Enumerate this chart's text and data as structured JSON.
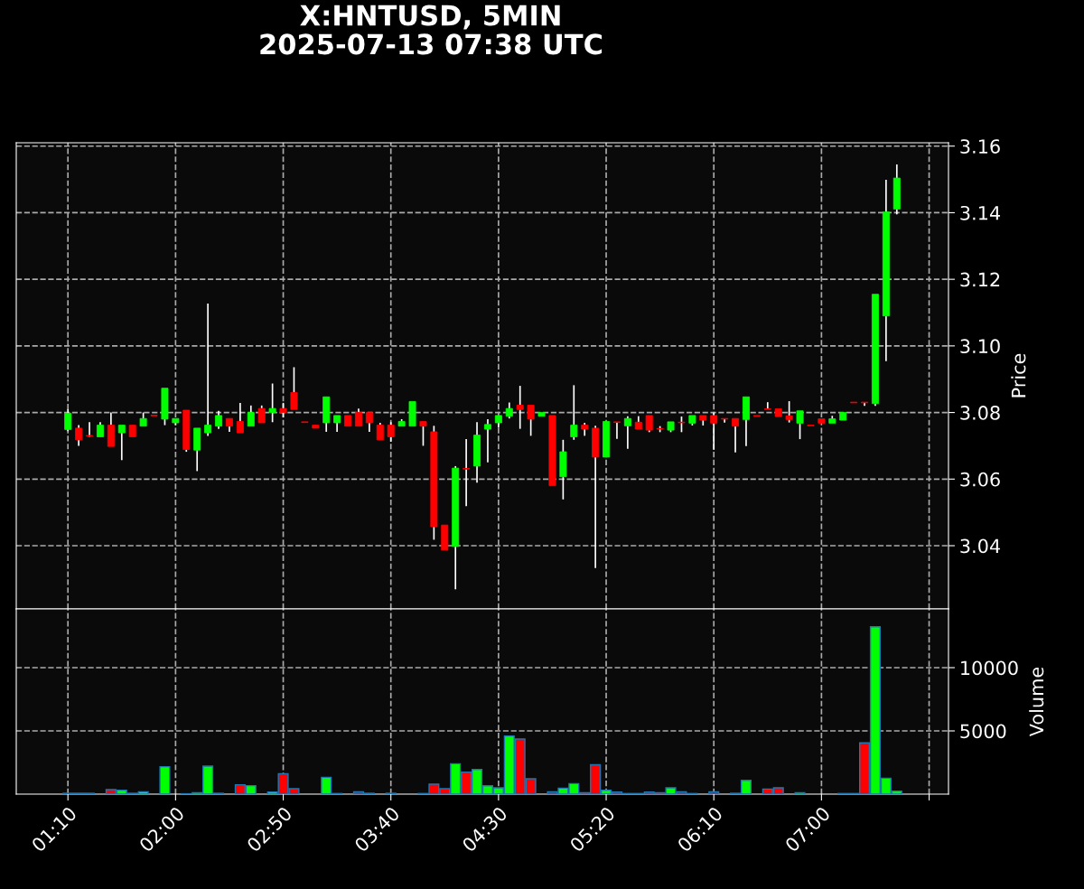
{
  "chart_data": [
    {
      "type": "candlestick",
      "title": "X:HNTUSD, 5MIN\n2025-07-13 07:38 UTC",
      "ylabel": "Price",
      "x": [
        "2025-07-13T01:10",
        "2025-07-13T01:15",
        "2025-07-13T01:20",
        "2025-07-13T01:25",
        "2025-07-13T01:30",
        "2025-07-13T01:35",
        "2025-07-13T01:40",
        "2025-07-13T01:45",
        "2025-07-13T01:50",
        "2025-07-13T01:55",
        "2025-07-13T02:00",
        "2025-07-13T02:05",
        "2025-07-13T02:10",
        "2025-07-13T02:15",
        "2025-07-13T02:20",
        "2025-07-13T02:25",
        "2025-07-13T02:30",
        "2025-07-13T02:35",
        "2025-07-13T02:40",
        "2025-07-13T02:45",
        "2025-07-13T02:50",
        "2025-07-13T02:55",
        "2025-07-13T03:00",
        "2025-07-13T03:05",
        "2025-07-13T03:10",
        "2025-07-13T03:15",
        "2025-07-13T03:20",
        "2025-07-13T03:25",
        "2025-07-13T03:30",
        "2025-07-13T03:35",
        "2025-07-13T03:40",
        "2025-07-13T03:45",
        "2025-07-13T03:50",
        "2025-07-13T03:55",
        "2025-07-13T04:00",
        "2025-07-13T04:05",
        "2025-07-13T04:10",
        "2025-07-13T04:15",
        "2025-07-13T04:20",
        "2025-07-13T04:25",
        "2025-07-13T04:30",
        "2025-07-13T04:35",
        "2025-07-13T04:40",
        "2025-07-13T04:45",
        "2025-07-13T04:50",
        "2025-07-13T04:55",
        "2025-07-13T05:00",
        "2025-07-13T05:05",
        "2025-07-13T05:10",
        "2025-07-13T05:15",
        "2025-07-13T05:20",
        "2025-07-13T05:25",
        "2025-07-13T05:30",
        "2025-07-13T05:35",
        "2025-07-13T05:40",
        "2025-07-13T05:45",
        "2025-07-13T05:50",
        "2025-07-13T05:55",
        "2025-07-13T06:00",
        "2025-07-13T06:05",
        "2025-07-13T06:10",
        "2025-07-13T06:15",
        "2025-07-13T06:20",
        "2025-07-13T06:25",
        "2025-07-13T06:30",
        "2025-07-13T06:35",
        "2025-07-13T06:40",
        "2025-07-13T06:45",
        "2025-07-13T06:50",
        "2025-07-13T06:55",
        "2025-07-13T07:00",
        "2025-07-13T07:05",
        "2025-07-13T07:10",
        "2025-07-13T07:15",
        "2025-07-13T07:20",
        "2025-07-13T07:25",
        "2025-07-13T07:30",
        "2025-07-13T07:35"
      ],
      "ohlc": [
        [
          3.0749,
          3.081,
          3.0744,
          3.0798
        ],
        [
          3.0753,
          3.0762,
          3.07,
          3.0718
        ],
        [
          3.0731,
          3.0771,
          3.0727,
          3.0729
        ],
        [
          3.0727,
          3.0771,
          3.0727,
          3.0762
        ],
        [
          3.0762,
          3.08,
          3.0698,
          3.0698
        ],
        [
          3.0739,
          3.0762,
          3.0657,
          3.0762
        ],
        [
          3.0762,
          3.0762,
          3.0727,
          3.0727
        ],
        [
          3.0759,
          3.08,
          3.0759,
          3.0782
        ],
        [
          3.0792,
          3.0792,
          3.079,
          3.079
        ],
        [
          3.078,
          3.0873,
          3.0762,
          3.0873
        ],
        [
          3.0769,
          3.0782,
          3.0762,
          3.0782
        ],
        [
          3.0807,
          3.0807,
          3.0682,
          3.0689
        ],
        [
          3.0687,
          3.0753,
          3.0624,
          3.0753
        ],
        [
          3.0739,
          3.1127,
          3.073,
          3.0762
        ],
        [
          3.0759,
          3.0805,
          3.0751,
          3.0791
        ],
        [
          3.0782,
          3.0782,
          3.0742,
          3.0759
        ],
        [
          3.0773,
          3.0829,
          3.0739,
          3.0739
        ],
        [
          3.0759,
          3.0821,
          3.0759,
          3.08
        ],
        [
          3.0812,
          3.0821,
          3.0769,
          3.0769
        ],
        [
          3.08,
          3.0887,
          3.0771,
          3.0812
        ],
        [
          3.0812,
          3.0829,
          3.0785,
          3.08
        ],
        [
          3.086,
          3.0936,
          3.0809,
          3.0809
        ],
        [
          3.0772,
          3.0772,
          3.077,
          3.077
        ],
        [
          3.0762,
          3.0762,
          3.0753,
          3.0753
        ],
        [
          3.0769,
          3.0847,
          3.0742,
          3.0847
        ],
        [
          3.0769,
          3.0791,
          3.0742,
          3.0791
        ],
        [
          3.0791,
          3.0791,
          3.0759,
          3.0759
        ],
        [
          3.08,
          3.0812,
          3.0759,
          3.0759
        ],
        [
          3.08,
          3.08,
          3.0742,
          3.0769
        ],
        [
          3.0762,
          3.0769,
          3.0718,
          3.0718
        ],
        [
          3.0762,
          3.0771,
          3.0712,
          3.0727
        ],
        [
          3.0759,
          3.078,
          3.0759,
          3.0773
        ],
        [
          3.0759,
          3.0833,
          3.0759,
          3.0833
        ],
        [
          3.0773,
          3.0773,
          3.07,
          3.0759
        ],
        [
          3.0742,
          3.076,
          3.0418,
          3.0457
        ],
        [
          3.0462,
          3.0462,
          3.0387,
          3.0387
        ],
        [
          3.0398,
          3.0639,
          3.0269,
          3.0633
        ],
        [
          3.0632,
          3.072,
          3.0519,
          3.063
        ],
        [
          3.0639,
          3.0771,
          3.0589,
          3.0732
        ],
        [
          3.075,
          3.078,
          3.065,
          3.0764
        ],
        [
          3.0769,
          3.0791,
          3.0755,
          3.0791
        ],
        [
          3.0789,
          3.083,
          3.0782,
          3.0812
        ],
        [
          3.0822,
          3.088,
          3.0751,
          3.0809
        ],
        [
          3.0822,
          3.0822,
          3.073,
          3.078
        ],
        [
          3.0789,
          3.08,
          3.0789,
          3.08
        ],
        [
          3.0791,
          3.0791,
          3.058,
          3.058
        ],
        [
          3.0607,
          3.0718,
          3.0539,
          3.0682
        ],
        [
          3.0727,
          3.0882,
          3.0718,
          3.0762
        ],
        [
          3.0762,
          3.0769,
          3.073,
          3.075
        ],
        [
          3.0753,
          3.076,
          3.0333,
          3.0666
        ],
        [
          3.0666,
          3.0773,
          3.0666,
          3.0773
        ],
        [
          3.0772,
          3.0772,
          3.0721,
          3.077
        ],
        [
          3.076,
          3.0789,
          3.0691,
          3.0782
        ],
        [
          3.0771,
          3.0789,
          3.075,
          3.075
        ],
        [
          3.0791,
          3.0791,
          3.0741,
          3.0747
        ],
        [
          3.0752,
          3.0759,
          3.0741,
          3.075
        ],
        [
          3.0747,
          3.0772,
          3.0741,
          3.0772
        ],
        [
          3.0771,
          3.0788,
          3.0741,
          3.0769
        ],
        [
          3.0768,
          3.0791,
          3.0761,
          3.0791
        ],
        [
          3.0791,
          3.0791,
          3.0761,
          3.0777
        ],
        [
          3.0791,
          3.08,
          3.0688,
          3.0768
        ],
        [
          3.0782,
          3.0782,
          3.077,
          3.078
        ],
        [
          3.0782,
          3.0782,
          3.068,
          3.0759
        ],
        [
          3.0779,
          3.0847,
          3.0699,
          3.0847
        ],
        [
          3.0791,
          3.0791,
          3.0789,
          3.0789
        ],
        [
          3.0811,
          3.0831,
          3.0809,
          3.0809
        ],
        [
          3.0811,
          3.0811,
          3.0788,
          3.0788
        ],
        [
          3.079,
          3.0834,
          3.077,
          3.0779
        ],
        [
          3.0768,
          3.0805,
          3.072,
          3.0805
        ],
        [
          3.0762,
          3.0762,
          3.076,
          3.076
        ],
        [
          3.0781,
          3.0781,
          3.0768,
          3.0768
        ],
        [
          3.0768,
          3.079,
          3.0768,
          3.0781
        ],
        [
          3.0777,
          3.08,
          3.0777,
          3.08
        ],
        [
          3.0831,
          3.0831,
          3.0829,
          3.0829
        ],
        [
          3.0831,
          3.0831,
          3.082,
          3.0829
        ],
        [
          3.0827,
          3.1155,
          3.082,
          3.1155
        ],
        [
          3.109,
          3.1499,
          3.0954,
          3.1402
        ],
        [
          3.1411,
          3.1545,
          3.1395,
          3.1504
        ]
      ],
      "colors": [
        "#00ff00",
        "#ff0000",
        "#ff0000",
        "#00ff00",
        "#ff0000",
        "#00ff00",
        "#ff0000",
        "#00ff00",
        "#ff0000",
        "#00ff00",
        "#00ff00",
        "#ff0000",
        "#00ff00",
        "#00ff00",
        "#00ff00",
        "#ff0000",
        "#ff0000",
        "#00ff00",
        "#ff0000",
        "#00ff00",
        "#ff0000",
        "#ff0000",
        "#ff0000",
        "#ff0000",
        "#00ff00",
        "#00ff00",
        "#ff0000",
        "#ff0000",
        "#ff0000",
        "#ff0000",
        "#ff0000",
        "#00ff00",
        "#00ff00",
        "#ff0000",
        "#ff0000",
        "#ff0000",
        "#00ff00",
        "#ff0000",
        "#00ff00",
        "#00ff00",
        "#00ff00",
        "#00ff00",
        "#ff0000",
        "#ff0000",
        "#00ff00",
        "#ff0000",
        "#00ff00",
        "#00ff00",
        "#ff0000",
        "#ff0000",
        "#00ff00",
        "#ff0000",
        "#00ff00",
        "#ff0000",
        "#ff0000",
        "#ff0000",
        "#00ff00",
        "#ff0000",
        "#00ff00",
        "#ff0000",
        "#ff0000",
        "#ff0000",
        "#ff0000",
        "#00ff00",
        "#ff0000",
        "#ff0000",
        "#ff0000",
        "#ff0000",
        "#00ff00",
        "#ff0000",
        "#ff0000",
        "#00ff00",
        "#00ff00",
        "#ff0000",
        "#ff0000",
        "#00ff00",
        "#00ff00",
        "#00ff00"
      ],
      "xlim": [
        "2025-07-13T00:46",
        "2025-07-13T07:59"
      ],
      "xticks": [
        {
          "value": "2025-07-13T01:10",
          "label": null
        },
        {
          "value": "2025-07-13T02:00",
          "label": null
        },
        {
          "value": "2025-07-13T02:50",
          "label": null
        },
        {
          "value": "2025-07-13T03:40",
          "label": null
        },
        {
          "value": "2025-07-13T04:30",
          "label": null
        },
        {
          "value": "2025-07-13T05:20",
          "label": null
        },
        {
          "value": "2025-07-13T06:10",
          "label": null
        },
        {
          "value": "2025-07-13T07:00",
          "label": null
        },
        {
          "value": "2025-07-13T07:50",
          "label": null
        }
      ],
      "ylim": [
        3.021,
        3.161
      ],
      "yticks": [
        3.04,
        3.06,
        3.08,
        {
          "value": 3.1,
          "label": "3.10"
        },
        3.12,
        3.14,
        3.16
      ],
      "tick_labels": "y",
      "grid": true
    },
    {
      "type": "bar",
      "ylabel": "Volume",
      "x": [
        "2025-07-13T01:10",
        "2025-07-13T01:15",
        "2025-07-13T01:20",
        "2025-07-13T01:25",
        "2025-07-13T01:30",
        "2025-07-13T01:35",
        "2025-07-13T01:40",
        "2025-07-13T01:45",
        "2025-07-13T01:50",
        "2025-07-13T01:55",
        "2025-07-13T02:00",
        "2025-07-13T02:05",
        "2025-07-13T02:10",
        "2025-07-13T02:15",
        "2025-07-13T02:20",
        "2025-07-13T02:25",
        "2025-07-13T02:30",
        "2025-07-13T02:35",
        "2025-07-13T02:40",
        "2025-07-13T02:45",
        "2025-07-13T02:50",
        "2025-07-13T02:55",
        "2025-07-13T03:00",
        "2025-07-13T03:05",
        "2025-07-13T03:10",
        "2025-07-13T03:15",
        "2025-07-13T03:20",
        "2025-07-13T03:25",
        "2025-07-13T03:30",
        "2025-07-13T03:35",
        "2025-07-13T03:40",
        "2025-07-13T03:45",
        "2025-07-13T03:50",
        "2025-07-13T03:55",
        "2025-07-13T04:00",
        "2025-07-13T04:05",
        "2025-07-13T04:10",
        "2025-07-13T04:15",
        "2025-07-13T04:20",
        "2025-07-13T04:25",
        "2025-07-13T04:30",
        "2025-07-13T04:35",
        "2025-07-13T04:40",
        "2025-07-13T04:45",
        "2025-07-13T04:50",
        "2025-07-13T04:55",
        "2025-07-13T05:00",
        "2025-07-13T05:05",
        "2025-07-13T05:10",
        "2025-07-13T05:15",
        "2025-07-13T05:20",
        "2025-07-13T05:25",
        "2025-07-13T05:30",
        "2025-07-13T05:35",
        "2025-07-13T05:40",
        "2025-07-13T05:45",
        "2025-07-13T05:50",
        "2025-07-13T05:55",
        "2025-07-13T06:00",
        "2025-07-13T06:05",
        "2025-07-13T06:10",
        "2025-07-13T06:15",
        "2025-07-13T06:20",
        "2025-07-13T06:25",
        "2025-07-13T06:30",
        "2025-07-13T06:35",
        "2025-07-13T06:40",
        "2025-07-13T06:45",
        "2025-07-13T06:50",
        "2025-07-13T06:55",
        "2025-07-13T07:00",
        "2025-07-13T07:05",
        "2025-07-13T07:10",
        "2025-07-13T07:15",
        "2025-07-13T07:20",
        "2025-07-13T07:25",
        "2025-07-13T07:30",
        "2025-07-13T07:35"
      ],
      "values": [
        70,
        70,
        70,
        0,
        360,
        310,
        70,
        190,
        0,
        2170,
        0,
        30,
        120,
        2210,
        70,
        0,
        740,
        670,
        0,
        170,
        1620,
        430,
        0,
        0,
        1330,
        50,
        0,
        190,
        70,
        0,
        70,
        0,
        0,
        50,
        790,
        430,
        2400,
        1740,
        1950,
        660,
        500,
        4600,
        4360,
        1210,
        0,
        190,
        470,
        830,
        120,
        2320,
        310,
        170,
        50,
        50,
        170,
        120,
        500,
        190,
        50,
        0,
        190,
        0,
        70,
        1090,
        0,
        400,
        500,
        0,
        120,
        0,
        0,
        0,
        50,
        50,
        4050,
        13230,
        1260,
        240
      ],
      "colors": [
        "#00ff00",
        "#ff0000",
        "#ff0000",
        "#00ff00",
        "#ff0000",
        "#00ff00",
        "#ff0000",
        "#00ff00",
        "#ff0000",
        "#00ff00",
        "#00ff00",
        "#ff0000",
        "#00ff00",
        "#00ff00",
        "#00ff00",
        "#ff0000",
        "#ff0000",
        "#00ff00",
        "#ff0000",
        "#00ff00",
        "#ff0000",
        "#ff0000",
        "#ff0000",
        "#ff0000",
        "#00ff00",
        "#00ff00",
        "#ff0000",
        "#ff0000",
        "#ff0000",
        "#ff0000",
        "#ff0000",
        "#00ff00",
        "#00ff00",
        "#ff0000",
        "#ff0000",
        "#ff0000",
        "#00ff00",
        "#ff0000",
        "#00ff00",
        "#00ff00",
        "#00ff00",
        "#00ff00",
        "#ff0000",
        "#ff0000",
        "#00ff00",
        "#ff0000",
        "#00ff00",
        "#00ff00",
        "#ff0000",
        "#ff0000",
        "#00ff00",
        "#ff0000",
        "#00ff00",
        "#ff0000",
        "#ff0000",
        "#ff0000",
        "#00ff00",
        "#ff0000",
        "#00ff00",
        "#ff0000",
        "#ff0000",
        "#ff0000",
        "#ff0000",
        "#00ff00",
        "#ff0000",
        "#ff0000",
        "#ff0000",
        "#ff0000",
        "#00ff00",
        "#ff0000",
        "#ff0000",
        "#00ff00",
        "#00ff00",
        "#ff0000",
        "#ff0000",
        "#00ff00",
        "#00ff00",
        "#00ff00"
      ],
      "xlim": [
        "2025-07-13T00:46",
        "2025-07-13T07:59"
      ],
      "xticks": [
        {
          "value": "2025-07-13T01:10",
          "label": "01:10"
        },
        {
          "value": "2025-07-13T02:00",
          "label": "02:00"
        },
        {
          "value": "2025-07-13T02:50",
          "label": "02:50"
        },
        {
          "value": "2025-07-13T03:40",
          "label": "03:40"
        },
        {
          "value": "2025-07-13T04:30",
          "label": "04:30"
        },
        {
          "value": "2025-07-13T05:20",
          "label": "05:20"
        },
        {
          "value": "2025-07-13T06:10",
          "label": "06:10"
        },
        {
          "value": "2025-07-13T07:00",
          "label": "07:00"
        },
        {
          "value": "2025-07-13T07:50",
          "label": null
        }
      ],
      "ylim": [
        0,
        14640
      ],
      "yticks": [
        5000,
        10000
      ],
      "grid": true
    }
  ]
}
